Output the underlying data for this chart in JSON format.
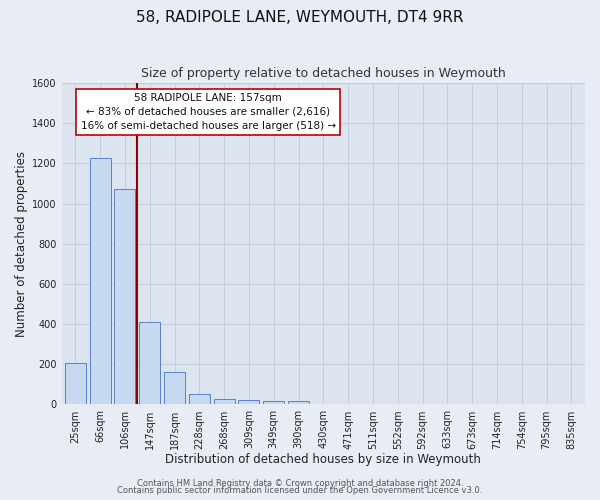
{
  "title": "58, RADIPOLE LANE, WEYMOUTH, DT4 9RR",
  "subtitle": "Size of property relative to detached houses in Weymouth",
  "xlabel": "Distribution of detached houses by size in Weymouth",
  "ylabel": "Number of detached properties",
  "bar_labels": [
    "25sqm",
    "66sqm",
    "106sqm",
    "147sqm",
    "187sqm",
    "228sqm",
    "268sqm",
    "309sqm",
    "349sqm",
    "390sqm",
    "430sqm",
    "471sqm",
    "511sqm",
    "552sqm",
    "592sqm",
    "633sqm",
    "673sqm",
    "714sqm",
    "754sqm",
    "795sqm",
    "835sqm"
  ],
  "bar_values": [
    205,
    1225,
    1075,
    410,
    160,
    52,
    28,
    20,
    18,
    15,
    0,
    0,
    0,
    0,
    0,
    0,
    0,
    0,
    0,
    0,
    0
  ],
  "bar_color": "#c6d9f0",
  "bar_edge_color": "#4472c4",
  "property_line_color": "#8b0000",
  "ylim": [
    0,
    1600
  ],
  "yticks": [
    0,
    200,
    400,
    600,
    800,
    1000,
    1200,
    1400,
    1600
  ],
  "annotation_title": "58 RADIPOLE LANE: 157sqm",
  "annotation_line1": "← 83% of detached houses are smaller (2,616)",
  "annotation_line2": "16% of semi-detached houses are larger (518) →",
  "annotation_box_color": "#ffffff",
  "annotation_box_edge": "#c00000",
  "footer_line1": "Contains HM Land Registry data © Crown copyright and database right 2024.",
  "footer_line2": "Contains public sector information licensed under the Open Government Licence v3.0.",
  "bg_color": "#e8ecf5",
  "plot_bg_color": "#dce4f0",
  "grid_color": "#b8c4d8",
  "title_fontsize": 11,
  "subtitle_fontsize": 9,
  "axis_label_fontsize": 8.5,
  "tick_fontsize": 7,
  "footer_fontsize": 6,
  "annot_fontsize": 7.5
}
